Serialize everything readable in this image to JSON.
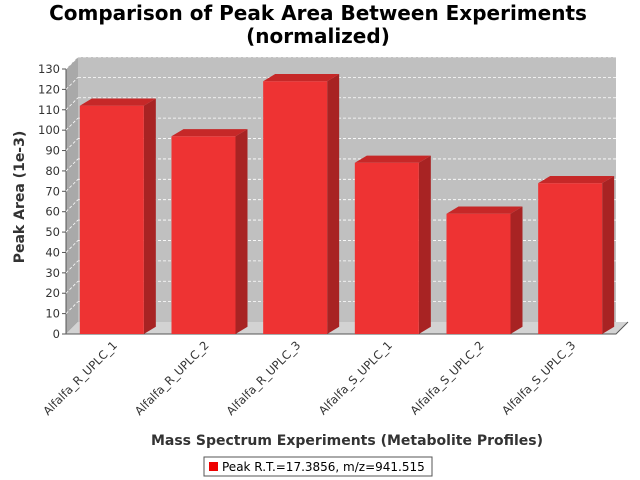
{
  "chart_data": {
    "type": "bar",
    "title": "Comparison of Peak Area Between Experiments",
    "subtitle": "(normalized)",
    "xlabel": "Mass Spectrum Experiments (Metabolite Profiles)",
    "ylabel": "Peak Area (1e-3)",
    "ylim": [
      0,
      130
    ],
    "yticks": [
      0,
      10,
      20,
      30,
      40,
      50,
      60,
      70,
      80,
      90,
      100,
      110,
      120,
      130
    ],
    "categories": [
      "Alfalfa_R_UPLC_1",
      "Alfalfa_R_UPLC_2",
      "Alfalfa_R_UPLC_3",
      "Alfalfa_S_UPLC_1",
      "Alfalfa_S_UPLC_2",
      "Alfalfa_S_UPLC_3"
    ],
    "series": [
      {
        "name": "Peak R.T.=17.3856, m/z=941.515",
        "values": [
          112,
          97,
          124,
          84,
          59,
          74
        ]
      }
    ],
    "grid": true,
    "legend_position": "bottom",
    "style": "3d",
    "colors": {
      "bar_front": "#ee3333",
      "bar_side": "#a82323",
      "bar_top": "#c62828",
      "plot_background": "#c0c0c0",
      "wall": "#a9a9a9",
      "floor": "#d3d3d3",
      "legend_swatch": "#ee0000"
    }
  }
}
